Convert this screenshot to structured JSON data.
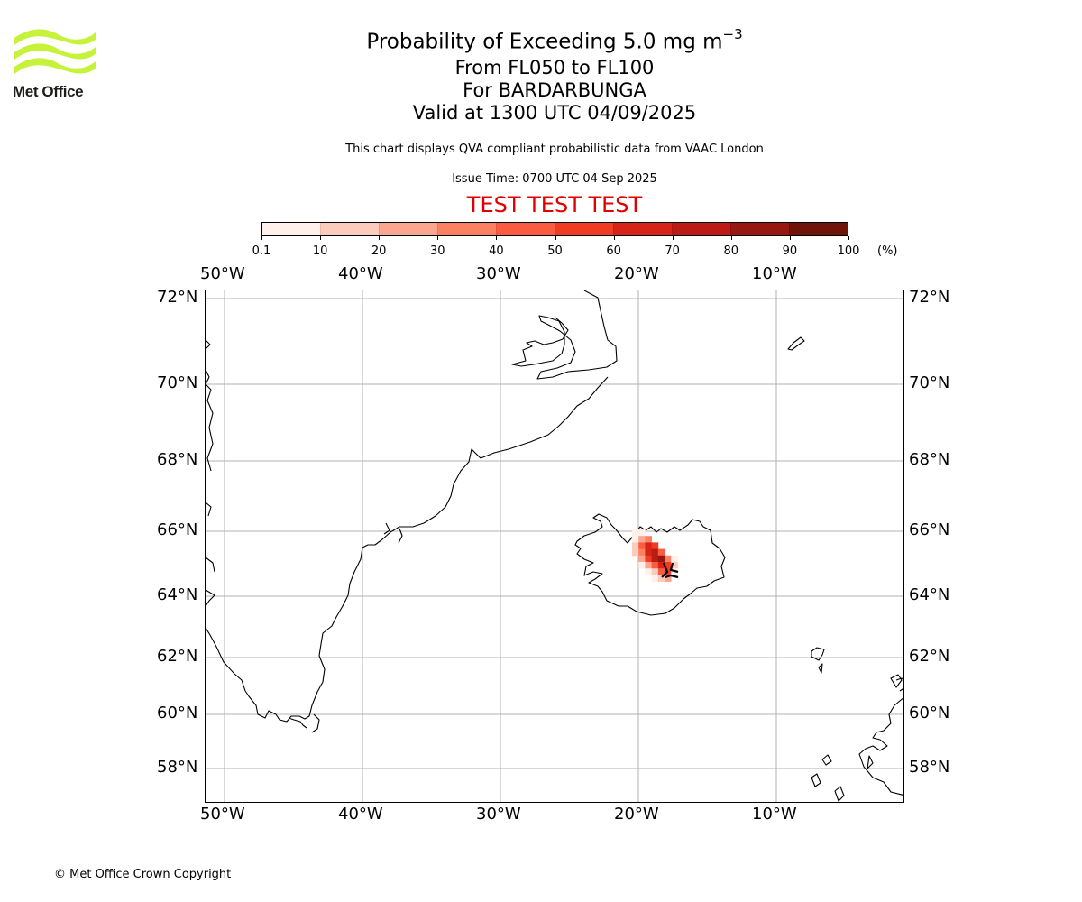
{
  "branding": {
    "logo_text": "Met Office",
    "logo_color": "#c6f23a",
    "copyright": "© Met Office Crown Copyright"
  },
  "header": {
    "title_prefix": "Probability of Exceeding 5.0 mg m",
    "title_exponent": "−3",
    "levels": "From FL050 to FL100",
    "volcano": "For BARDARBUNGA",
    "valid": "Valid at 1300 UTC 04/09/2025",
    "description": "This chart displays QVA compliant probabilistic data from VAAC London",
    "issue_time": "Issue Time: 0700 UTC 04 Sep 2025",
    "test_banner": "TEST TEST TEST"
  },
  "colorbar": {
    "unit": "(%)",
    "ticks": [
      "0.1",
      "10",
      "20",
      "30",
      "40",
      "50",
      "60",
      "70",
      "80",
      "90",
      "100"
    ],
    "colors": [
      "#fff0eb",
      "#fdcbbb",
      "#fca58f",
      "#fc8062",
      "#f95c41",
      "#f03c22",
      "#d72418",
      "#bc1b15",
      "#961810",
      "#70140a"
    ]
  },
  "map": {
    "lon_labels": [
      {
        "lon": -50,
        "text": "50°W"
      },
      {
        "lon": -40,
        "text": "40°W"
      },
      {
        "lon": -30,
        "text": "30°W"
      },
      {
        "lon": -20,
        "text": "20°W"
      },
      {
        "lon": -10,
        "text": "10°W"
      }
    ],
    "lat_labels": [
      {
        "lat": 72,
        "text": "72°N"
      },
      {
        "lat": 70,
        "text": "70°N"
      },
      {
        "lat": 68,
        "text": "68°N"
      },
      {
        "lat": 66,
        "text": "66°N"
      },
      {
        "lat": 64,
        "text": "64°N"
      },
      {
        "lat": 62,
        "text": "62°N"
      },
      {
        "lat": 60,
        "text": "60°N"
      },
      {
        "lat": 58,
        "text": "58°N"
      }
    ],
    "plume_probabilities": [
      [
        5,
        5,
        0,
        0,
        0,
        0,
        0
      ],
      [
        5,
        25,
        30,
        0,
        0,
        0,
        0
      ],
      [
        10,
        45,
        60,
        50,
        0,
        0,
        0
      ],
      [
        10,
        30,
        65,
        75,
        40,
        0,
        0
      ],
      [
        0,
        20,
        50,
        70,
        80,
        30,
        5
      ],
      [
        0,
        5,
        25,
        45,
        60,
        55,
        10
      ],
      [
        0,
        0,
        5,
        15,
        40,
        50,
        5
      ],
      [
        0,
        0,
        0,
        5,
        15,
        25,
        0
      ]
    ]
  }
}
